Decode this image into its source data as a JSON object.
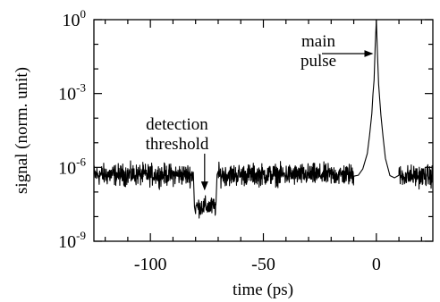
{
  "chart_data": {
    "type": "line",
    "xlabel": "time (ps)",
    "ylabel": "signal (norm. unit)",
    "xlim": [
      -125,
      25
    ],
    "ylim_log10": [
      -9,
      0
    ],
    "y_scale": "log",
    "grid": false,
    "x_ticks": [
      {
        "value": -100,
        "label": "-100"
      },
      {
        "value": -50,
        "label": "-50"
      },
      {
        "value": 0,
        "label": "0"
      }
    ],
    "y_ticks": [
      {
        "exp": -9,
        "base": "10",
        "sup": "-9"
      },
      {
        "exp": -6,
        "base": "10",
        "sup": "-6"
      },
      {
        "exp": -3,
        "base": "10",
        "sup": "-3"
      },
      {
        "exp": 0,
        "base": "10",
        "sup": "0"
      }
    ],
    "annotations": [
      {
        "lines": [
          "main",
          "pulse"
        ],
        "target_x": -1,
        "target_log10": -1.3
      },
      {
        "lines": [
          "detection",
          "threshold"
        ],
        "target_x": -76,
        "target_log10": -6.9
      }
    ],
    "series": [
      {
        "segments": [
          {
            "x_start": -125,
            "x_end": -81,
            "log10": -6.3
          },
          {
            "x_start": -80,
            "x_end": -71,
            "log10": -7.6
          },
          {
            "x_start": -70,
            "x_end": -10,
            "log10": -6.3
          },
          {
            "x_start": 10,
            "x_end": 25,
            "log10": -6.35
          }
        ],
        "peak": {
          "x": 0,
          "log10": 0
        },
        "peak_points": [
          [
            -10,
            -6.3
          ],
          [
            -8,
            -6.2
          ],
          [
            -6,
            -6.0
          ],
          [
            -4,
            -5.3
          ],
          [
            -3,
            -4.6
          ],
          [
            -2,
            -3.8
          ],
          [
            -1.5,
            -3.0
          ],
          [
            -1,
            -2.4
          ],
          [
            -0.5,
            -1.0
          ],
          [
            0,
            0
          ],
          [
            0.5,
            -1.4
          ],
          [
            1,
            -2.6
          ],
          [
            1.5,
            -3.3
          ],
          [
            2,
            -4.0
          ],
          [
            3,
            -4.9
          ],
          [
            4,
            -5.6
          ],
          [
            6,
            -6.1
          ],
          [
            8,
            -6.3
          ],
          [
            10,
            -6.35
          ]
        ]
      }
    ]
  }
}
